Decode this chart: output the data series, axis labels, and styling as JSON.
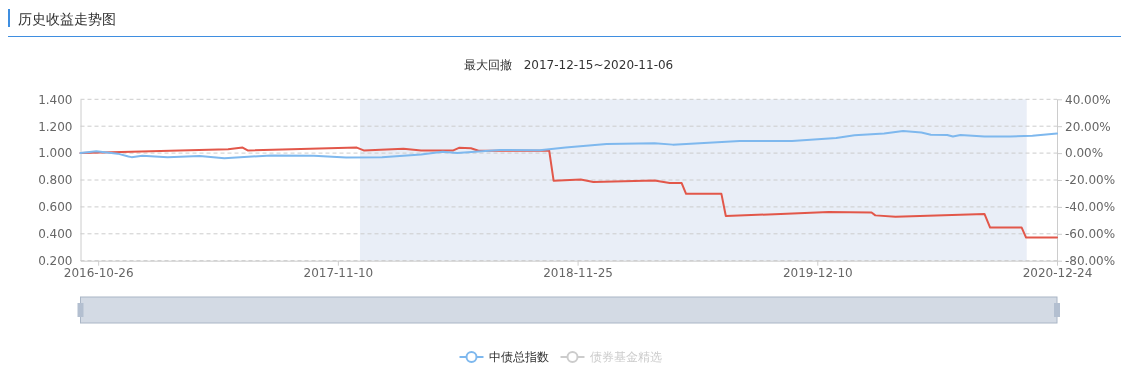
{
  "chart_data": {
    "type": "line",
    "title": "历史收益走势图",
    "subtitle": "最大回撤   2017-12-15~2020-11-06",
    "xlim": [
      "2016-09-28",
      "2020-12-24"
    ],
    "xticks": [
      "2016-10-26",
      "2017-11-10",
      "2018-11-25",
      "2019-12-10",
      "2020-12-24"
    ],
    "ylim": [
      0.2,
      1.4
    ],
    "yticks": [
      {
        "value": 0.2,
        "label": "0.200"
      },
      {
        "value": 0.4,
        "label": "0.400"
      },
      {
        "value": 0.6,
        "label": "0.600"
      },
      {
        "value": 0.8,
        "label": "0.800"
      },
      {
        "value": 1.0,
        "label": "1.000"
      },
      {
        "value": 1.2,
        "label": "1.200"
      },
      {
        "value": 1.4,
        "label": "1.400"
      }
    ],
    "y2lim": [
      -80,
      40
    ],
    "y2ticks": [
      {
        "value": -80,
        "label": "-80.00%"
      },
      {
        "value": -60,
        "label": "-60.00%"
      },
      {
        "value": -40,
        "label": "-40.00%"
      },
      {
        "value": -20,
        "label": "-20.00%"
      },
      {
        "value": 0,
        "label": "0.00%"
      },
      {
        "value": 20,
        "label": "20.00%"
      },
      {
        "value": 40,
        "label": "40.00%"
      }
    ],
    "grid": "y",
    "legend": "bottom",
    "line_style": "solid",
    "bands": [
      {
        "axis": "x",
        "from": "2017-12-15",
        "to": "2020-11-06",
        "color": "#e9eef7"
      }
    ],
    "series": [
      {
        "color": "#e2574a",
        "x": [
          "2016-09-28",
          "2016-12-18",
          "2017-05-20",
          "2017-06-12",
          "2017-06-20",
          "2017-12-10",
          "2017-12-21",
          "2018-02-22",
          "2018-03-22",
          "2018-05-12",
          "2018-05-21",
          "2018-06-09",
          "2018-06-21",
          "2018-10-09",
          "2018-10-11",
          "2018-10-18",
          "2018-11-30",
          "2018-12-20",
          "2019-03-27",
          "2019-04-20",
          "2019-05-09",
          "2019-05-16",
          "2019-07-11",
          "2019-07-18",
          "2019-10-13",
          "2019-12-28",
          "2020-03-05",
          "2020-03-11",
          "2020-04-12",
          "2020-08-31",
          "2020-09-09",
          "2020-10-29",
          "2020-11-05",
          "2020-12-24"
        ],
        "values": [
          1.0,
          1.01,
          1.028,
          1.041,
          1.02,
          1.041,
          1.02,
          1.033,
          1.02,
          1.02,
          1.039,
          1.036,
          1.018,
          1.018,
          1.019,
          0.795,
          0.804,
          0.785,
          0.796,
          0.777,
          0.777,
          0.697,
          0.697,
          0.532,
          0.548,
          0.562,
          0.559,
          0.537,
          0.526,
          0.548,
          0.446,
          0.446,
          0.372,
          0.372
        ]
      },
      {
        "name": "中债总指数",
        "color": "#7eb8ee",
        "axis": "y2",
        "x": [
          "2016-09-28",
          "2016-10-23",
          "2016-11-26",
          "2016-12-13",
          "2016-12-18",
          "2017-01-04",
          "2017-02-13",
          "2017-04-05",
          "2017-05-14",
          "2017-07-27",
          "2017-10-03",
          "2017-11-23",
          "2018-01-19",
          "2018-03-22",
          "2018-04-25",
          "2018-05-18",
          "2018-07-25",
          "2018-09-26",
          "2018-11-06",
          "2019-01-10",
          "2019-03-27",
          "2019-04-25",
          "2019-08-09",
          "2019-10-31",
          "2020-01-09",
          "2020-02-07",
          "2020-03-25",
          "2020-04-24",
          "2020-05-23",
          "2020-06-07",
          "2020-07-03",
          "2020-07-12",
          "2020-07-24",
          "2020-08-31",
          "2020-10-11",
          "2020-11-15",
          "2020-12-24"
        ],
        "values": [
          0,
          1.3,
          -0.4,
          -2.5,
          -3.0,
          -1.9,
          -3.0,
          -2.2,
          -3.8,
          -1.7,
          -1.9,
          -3.3,
          -3.0,
          -1.1,
          1.0,
          0.1,
          2.3,
          2.2,
          4.1,
          6.8,
          7.4,
          6.3,
          9.0,
          9.0,
          11.2,
          13.2,
          14.5,
          16.4,
          15.3,
          13.7,
          13.4,
          12.3,
          13.4,
          12.3,
          12.3,
          12.9,
          14.5
        ]
      },
      {
        "name": "债券基金精选",
        "color": "#cccccc"
      }
    ]
  }
}
